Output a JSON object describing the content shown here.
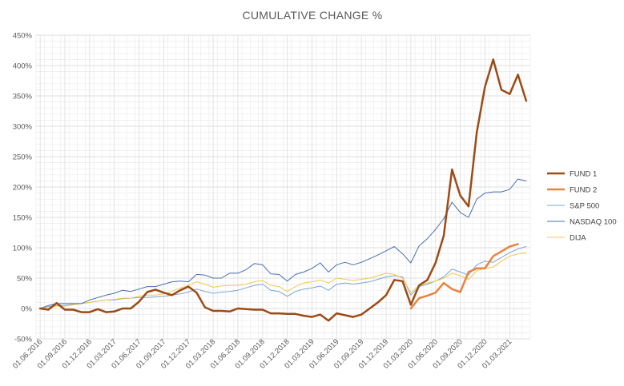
{
  "chart_data": {
    "type": "line",
    "title": "CUMULATIVE CHANGE %",
    "xlabel": "",
    "ylabel": "",
    "y_format": "percent",
    "ylim": [
      -50,
      450
    ],
    "y_ticks": [
      -50,
      0,
      50,
      100,
      150,
      200,
      250,
      300,
      350,
      400,
      450
    ],
    "y_tick_labels": [
      "-50%",
      "0%",
      "50%",
      "100%",
      "150%",
      "200%",
      "250%",
      "300%",
      "350%",
      "400%",
      "450%"
    ],
    "x_tick_labels": [
      "01.06.2016",
      "01.09.2016",
      "01.12.2016",
      "01.03.2017",
      "01.06.2017",
      "01.09.2017",
      "01.12.2017",
      "01.03.2018",
      "01.06.2018",
      "01.09.2018",
      "01.12.2018",
      "01.03.2019",
      "01.06.2019",
      "01.09.2019",
      "01.12.2019",
      "01.03.2020",
      "01.06.2020",
      "01.09.2020",
      "01.12.2020",
      "01.03.2021"
    ],
    "x_tick_month_index": [
      0,
      3,
      6,
      9,
      12,
      15,
      18,
      21,
      24,
      27,
      30,
      33,
      36,
      39,
      42,
      45,
      48,
      51,
      54,
      57
    ],
    "grid": true,
    "legend": "right",
    "series": [
      {
        "name": "FUND 1",
        "color": "#9E4A15",
        "width": 2.5,
        "start": 0,
        "values": [
          0,
          -2,
          9,
          -2,
          -2,
          -6,
          -6,
          -1,
          -6,
          -5,
          0,
          0,
          11,
          27,
          31,
          26,
          22,
          30,
          36,
          26,
          2,
          -4,
          -4,
          -5,
          0,
          -1,
          -2,
          -2,
          -8,
          -8,
          -9,
          -9,
          -12,
          -14,
          -10,
          -20,
          -8,
          -11,
          -14,
          -10,
          0,
          10,
          22,
          47,
          45,
          6,
          38,
          47,
          75,
          120,
          229,
          186,
          168,
          290,
          365,
          410,
          360,
          353,
          385,
          342
        ]
      },
      {
        "name": "FUND 2",
        "color": "#E9833F",
        "width": 2.5,
        "start": 45,
        "values": [
          0,
          17,
          21,
          26,
          42,
          32,
          27,
          60,
          66,
          66,
          86,
          94,
          102,
          106
        ]
      },
      {
        "name": "S&P 500",
        "color": "#7DA6D6",
        "width": 1,
        "start": 0,
        "values": [
          0,
          3,
          5,
          5,
          7,
          8,
          10,
          12,
          14,
          14,
          16,
          17,
          18,
          18,
          19,
          20,
          22,
          24,
          27,
          32,
          28,
          25,
          27,
          28,
          30,
          34,
          38,
          40,
          30,
          28,
          20,
          28,
          32,
          34,
          37,
          30,
          40,
          42,
          40,
          42,
          44,
          48,
          52,
          54,
          52,
          22,
          36,
          40,
          45,
          52,
          65,
          60,
          55,
          72,
          78,
          76,
          84,
          92,
          98,
          102
        ]
      },
      {
        "name": "NASDAQ 100",
        "color": "#4A6DAE",
        "width": 1,
        "start": 0,
        "values": [
          0,
          5,
          8,
          8,
          8,
          8,
          14,
          18,
          22,
          25,
          30,
          28,
          32,
          36,
          36,
          40,
          44,
          45,
          44,
          56,
          55,
          50,
          50,
          58,
          58,
          64,
          74,
          72,
          57,
          56,
          45,
          56,
          60,
          66,
          75,
          60,
          72,
          76,
          72,
          76,
          82,
          88,
          95,
          102,
          90,
          75,
          103,
          115,
          130,
          148,
          175,
          158,
          150,
          180,
          190,
          192,
          192,
          196,
          213,
          210
        ]
      },
      {
        "name": "DIJA",
        "color": "#F2C94C",
        "width": 1,
        "start": 0,
        "values": [
          0,
          2,
          4,
          4,
          6,
          8,
          10,
          12,
          14,
          15,
          17,
          17,
          20,
          22,
          22,
          24,
          28,
          34,
          38,
          44,
          40,
          35,
          37,
          38,
          38,
          40,
          44,
          46,
          38,
          36,
          28,
          36,
          42,
          44,
          47,
          42,
          50,
          48,
          46,
          48,
          50,
          54,
          58,
          56,
          50,
          26,
          38,
          42,
          45,
          50,
          58,
          54,
          48,
          62,
          66,
          68,
          78,
          86,
          90,
          92
        ]
      }
    ]
  }
}
